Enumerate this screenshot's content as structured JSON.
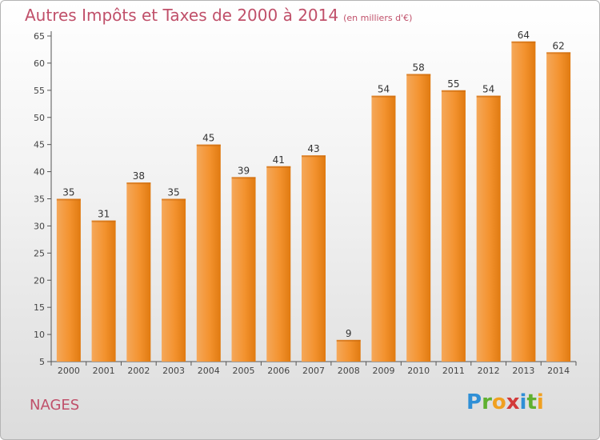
{
  "title": {
    "main": "Autres Impôts et Taxes de 2000 à 2014",
    "unit": "(en milliers d'€)"
  },
  "place": "NAGES",
  "logo": {
    "text": "Proxiti",
    "letters": [
      "P",
      "r",
      "o",
      "x",
      "i",
      "t",
      "i"
    ]
  },
  "colors": {
    "bar": "#f08a1e",
    "bar_light": "#f5a85a",
    "title": "#c0506a"
  },
  "chart_data": {
    "type": "bar",
    "categories": [
      "2000",
      "2001",
      "2002",
      "2003",
      "2004",
      "2005",
      "2006",
      "2007",
      "2008",
      "2009",
      "2010",
      "2011",
      "2012",
      "2013",
      "2014"
    ],
    "values": [
      35,
      31,
      38,
      35,
      45,
      39,
      41,
      43,
      9,
      54,
      58,
      55,
      54,
      64,
      62
    ],
    "title": "Autres Impôts et Taxes de 2000 à 2014",
    "xlabel": "",
    "ylabel": "",
    "ylim": [
      5,
      65
    ],
    "yticks": [
      5,
      10,
      15,
      20,
      25,
      30,
      35,
      40,
      45,
      50,
      55,
      60,
      65
    ],
    "grid": false,
    "data_labels": true
  }
}
